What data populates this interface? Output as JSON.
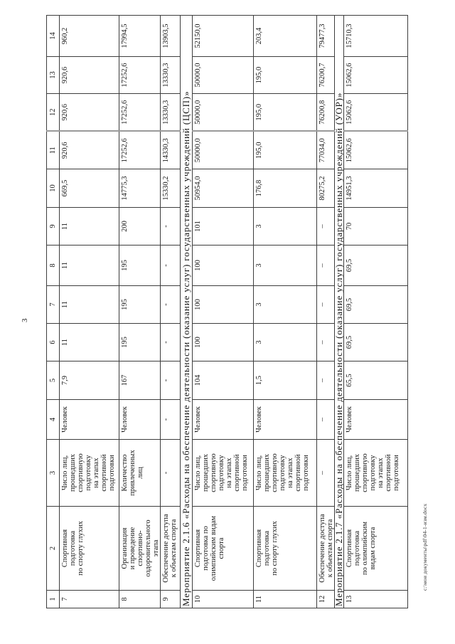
{
  "page": {
    "number": "3",
    "footer_path": "с:\\мои документы\\pdf\\04-1-изм.docx"
  },
  "table": {
    "column_numbers": [
      "1",
      "2",
      "3",
      "4",
      "5",
      "6",
      "7",
      "8",
      "9",
      "10",
      "11",
      "12",
      "13",
      "14"
    ],
    "rows": [
      {
        "type": "data",
        "num": "7",
        "name_lines": [
          "Спортивная",
          "подготовка",
          "по спорту глухих"
        ],
        "indicator_lines": [
          "Число лиц,",
          "прошедших",
          "спортивную",
          "подготовку",
          "на этапах",
          "спортивной",
          "подготовки"
        ],
        "unit": "Человек",
        "values": [
          "7,9",
          "11",
          "11",
          "11",
          "11",
          "669,5",
          "920,6",
          "920,6",
          "920,6",
          "960,2"
        ]
      },
      {
        "type": "data",
        "num": "8",
        "name_lines": [
          "Организация",
          "и проведение",
          "спортивно-",
          "оздоровительного",
          "этапа"
        ],
        "indicator_lines": [
          "Количество",
          "привлеченных",
          "лиц"
        ],
        "unit": "Человек",
        "values": [
          "167",
          "195",
          "195",
          "195",
          "200",
          "14775,3",
          "17252,6",
          "17252,6",
          "17252,6",
          "17994,5"
        ]
      },
      {
        "type": "data",
        "num": "9",
        "name_lines": [
          "Обеспечение доступа",
          "к объектам спорта"
        ],
        "indicator_lines": [
          "-"
        ],
        "unit": "-",
        "values": [
          "-",
          "-",
          "-",
          "-",
          "-",
          "15330,2",
          "14330,3",
          "13330,3",
          "13330,3",
          "13903,5"
        ]
      },
      {
        "type": "section",
        "label": "Мероприятие 2.1.6 «Расходы на обеспечение деятельности (оказание услуг) государственных учреждений (ЦСП)»"
      },
      {
        "type": "data",
        "num": "10",
        "name_lines": [
          "Спортивная",
          "подготовка по",
          "олимпийским видам",
          "спорта"
        ],
        "indicator_lines": [
          "Число лиц,",
          "прошедших",
          "спортивную",
          "подготовку",
          "на этапах",
          "спортивной",
          "подготовки"
        ],
        "unit": "Человек",
        "values": [
          "104",
          "100",
          "100",
          "100",
          "101",
          "50954,0",
          "50000,0",
          "50000,0",
          "50000,0",
          "52150,0"
        ]
      },
      {
        "type": "data",
        "num": "11",
        "name_lines": [
          "Спортивная",
          "подготовка",
          "по спорту глухих"
        ],
        "indicator_lines": [
          "Число лиц,",
          "прошедших",
          "спортивную",
          "подготовку",
          "на этапах",
          "спортивной",
          "подготовки"
        ],
        "unit": "Человек",
        "values": [
          "1,5",
          "3",
          "3",
          "3",
          "3",
          "176,8",
          "195,0",
          "195,0",
          "195,0",
          "203,4"
        ]
      },
      {
        "type": "data",
        "num": "12",
        "name_lines": [
          "Обеспечение доступа",
          "к объектам спорта"
        ],
        "indicator_lines": [
          "–"
        ],
        "unit": "–",
        "values": [
          "–",
          "–",
          "–",
          "–",
          "–",
          "80275,2",
          "77034,0",
          "76200,8",
          "76200,7",
          "79477,3"
        ]
      },
      {
        "type": "section",
        "label": "Мероприятие 2.1.7 «Расходы на обеспечение деятельности (оказание услуг) государственных учреждений (УОР)»"
      },
      {
        "type": "data",
        "num": "13",
        "name_lines": [
          "Спортивная",
          "подготовка",
          "по олимпийским",
          "видам спорта"
        ],
        "indicator_lines": [
          "Число лиц,",
          "прошедших",
          "спортивную",
          "подготовку",
          "на этапах",
          "спортивной",
          "подготовки"
        ],
        "unit": "Человек",
        "values": [
          "65,5",
          "69,5",
          "69,5",
          "69,5",
          "70",
          "14951,3",
          "15062,6",
          "15062,6",
          "15062,6",
          "15710,3"
        ]
      }
    ]
  }
}
